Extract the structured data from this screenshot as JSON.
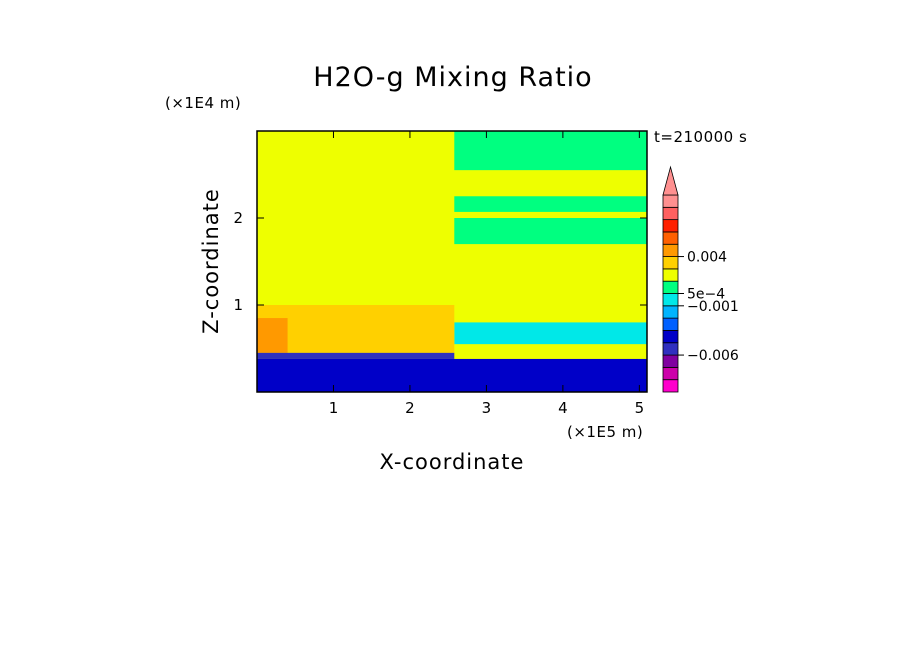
{
  "chart_data": {
    "type": "heatmap",
    "title": "H2O-g Mixing Ratio",
    "xlabel": "X-coordinate",
    "ylabel": "Z-coordinate",
    "x_unit": "(×1E5 m)",
    "z_unit": "(×1E4 m)",
    "time_label": "t=210000 s",
    "xlim": [
      0,
      5.1
    ],
    "zlim": [
      0,
      3
    ],
    "x_ticks": [
      {
        "value": 1,
        "label": "1"
      },
      {
        "value": 2,
        "label": "2"
      },
      {
        "value": 3,
        "label": "3"
      },
      {
        "value": 4,
        "label": "4"
      },
      {
        "value": 5,
        "label": "5"
      }
    ],
    "z_ticks": [
      {
        "value": 1,
        "label": "1"
      },
      {
        "value": 2,
        "label": "2"
      }
    ],
    "colorbar": {
      "colors": [
        "#ff00cc",
        "#cc00aa",
        "#8000a0",
        "#3030c0",
        "#0000c8",
        "#0060ff",
        "#00b4ff",
        "#00e8e8",
        "#00ff80",
        "#eeff00",
        "#ffd000",
        "#ff9900",
        "#ff6000",
        "#ff2000",
        "#ff6060",
        "#ff9090"
      ],
      "labels": [
        {
          "text": "-0.006",
          "level": 3
        },
        {
          "text": "-0.001",
          "level": 7
        },
        {
          "text": "5e-4",
          "level": 8
        },
        {
          "text": "0.004",
          "level": 11
        }
      ],
      "extend": "max"
    },
    "regions": [
      {
        "x": [
          0.0,
          5.1
        ],
        "z": [
          0.0,
          3.0
        ],
        "c": 9
      },
      {
        "x": [
          2.58,
          5.1
        ],
        "z": [
          2.55,
          3.0
        ],
        "c": 8
      },
      {
        "x": [
          2.58,
          5.1
        ],
        "z": [
          2.07,
          2.25
        ],
        "c": 8
      },
      {
        "x": [
          2.58,
          5.1
        ],
        "z": [
          1.7,
          2.0
        ],
        "c": 8
      },
      {
        "x": [
          2.58,
          5.1
        ],
        "z": [
          0.55,
          0.8
        ],
        "c": 7
      },
      {
        "x": [
          0.0,
          2.58
        ],
        "z": [
          0.45,
          1.0
        ],
        "c": 10
      },
      {
        "x": [
          0.0,
          0.4
        ],
        "z": [
          0.45,
          0.85
        ],
        "c": 11
      },
      {
        "x": [
          0.0,
          2.58
        ],
        "z": [
          0.38,
          0.45
        ],
        "c": 3
      },
      {
        "x": [
          0.0,
          5.1
        ],
        "z": [
          0.0,
          0.38
        ],
        "c": 4
      }
    ]
  }
}
